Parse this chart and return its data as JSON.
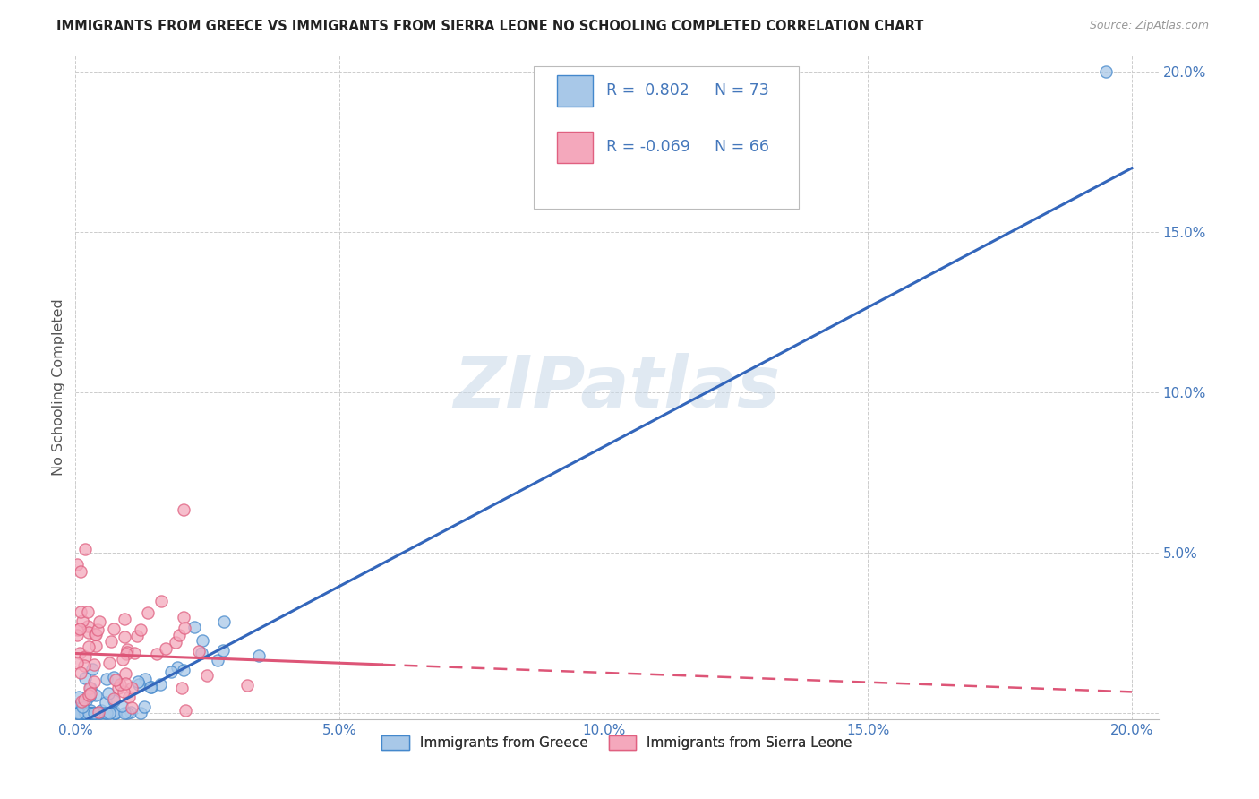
{
  "title": "IMMIGRANTS FROM GREECE VS IMMIGRANTS FROM SIERRA LEONE NO SCHOOLING COMPLETED CORRELATION CHART",
  "source": "Source: ZipAtlas.com",
  "ylabel": "No Schooling Completed",
  "xlim": [
    0.0,
    0.205
  ],
  "ylim": [
    -0.002,
    0.205
  ],
  "xticks": [
    0.0,
    0.05,
    0.1,
    0.15,
    0.2
  ],
  "yticks": [
    0.0,
    0.05,
    0.1,
    0.15,
    0.2
  ],
  "xtick_labels": [
    "0.0%",
    "5.0%",
    "10.0%",
    "15.0%",
    "20.0%"
  ],
  "ytick_labels": [
    "",
    "5.0%",
    "10.0%",
    "15.0%",
    "20.0%"
  ],
  "greece_R": 0.802,
  "greece_N": 73,
  "sl_R": -0.069,
  "sl_N": 66,
  "greece_color": "#A8C8E8",
  "sl_color": "#F4A8BC",
  "greece_edge_color": "#4488CC",
  "sl_edge_color": "#E06080",
  "greece_line_color": "#3366BB",
  "sl_line_color": "#DD5577",
  "watermark": "ZIPatlas",
  "legend_greece": "Immigrants from Greece",
  "legend_sl": "Immigrants from Sierra Leone",
  "background_color": "#ffffff",
  "grid_color": "#CCCCCC",
  "title_color": "#222222",
  "axis_label_color": "#4477BB",
  "seed": 42,
  "greece_line_x0": 0.0,
  "greece_line_y0": -0.004,
  "greece_line_x1": 0.2,
  "greece_line_y1": 0.17,
  "sl_line_x0": 0.0,
  "sl_line_y0": 0.0185,
  "sl_line_x1_solid": 0.058,
  "sl_line_x1": 0.2,
  "sl_line_y1": 0.0065
}
